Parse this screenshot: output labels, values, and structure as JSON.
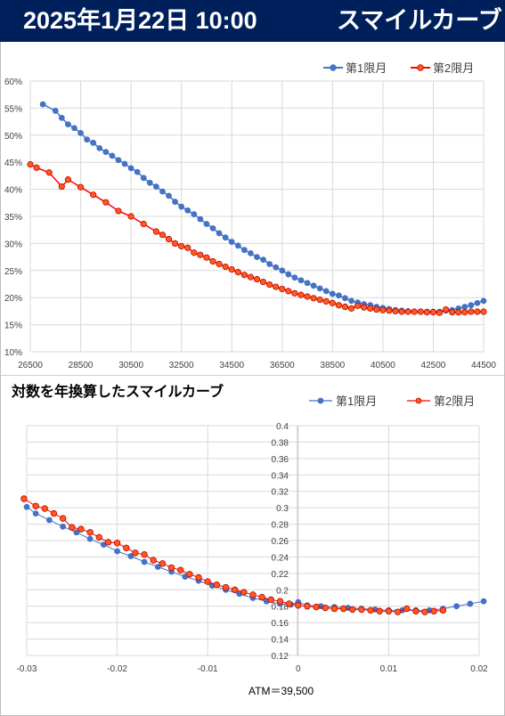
{
  "header": {
    "date": "2025年1月22日 10:00",
    "title": "スマイルカーブ"
  },
  "colors": {
    "header_bg": "#00205b",
    "series1": "#4472c4",
    "series2": "#ff0000",
    "series2_fill": "#ff5a1e"
  },
  "chart_data": [
    {
      "type": "line",
      "title": "",
      "legend_position": "top-right",
      "grid": true,
      "xlim": [
        26500,
        44500
      ],
      "ylim": [
        0.1,
        0.6
      ],
      "x_ticks": [
        "26500",
        "28500",
        "30500",
        "32500",
        "34500",
        "36500",
        "38500",
        "40500",
        "42500",
        "44500"
      ],
      "y_ticks": [
        "10%",
        "15%",
        "20%",
        "25%",
        "30%",
        "35%",
        "40%",
        "45%",
        "50%",
        "55%",
        "60%"
      ],
      "series": [
        {
          "name": "第1限月",
          "x": [
            27000,
            27500,
            27750,
            28000,
            28250,
            28500,
            28750,
            29000,
            29250,
            29500,
            29750,
            30000,
            30250,
            30500,
            30750,
            31000,
            31250,
            31500,
            31750,
            32000,
            32250,
            32500,
            32750,
            33000,
            33250,
            33500,
            33750,
            34000,
            34250,
            34500,
            34750,
            35000,
            35250,
            35500,
            35750,
            36000,
            36250,
            36500,
            36750,
            37000,
            37250,
            37500,
            37750,
            38000,
            38250,
            38500,
            38750,
            39000,
            39250,
            39500,
            39750,
            40000,
            40250,
            40500,
            40750,
            41000,
            41250,
            41500,
            41750,
            42000,
            42250,
            42500,
            42750,
            43000,
            43250,
            43500,
            43750,
            44000,
            44250,
            44500
          ],
          "y": [
            0.557,
            0.545,
            0.532,
            0.52,
            0.513,
            0.504,
            0.492,
            0.486,
            0.476,
            0.469,
            0.462,
            0.454,
            0.447,
            0.439,
            0.432,
            0.421,
            0.412,
            0.405,
            0.396,
            0.388,
            0.377,
            0.368,
            0.361,
            0.354,
            0.345,
            0.336,
            0.328,
            0.319,
            0.311,
            0.303,
            0.296,
            0.288,
            0.282,
            0.275,
            0.27,
            0.262,
            0.256,
            0.25,
            0.243,
            0.237,
            0.232,
            0.227,
            0.222,
            0.217,
            0.212,
            0.207,
            0.204,
            0.199,
            0.194,
            0.191,
            0.188,
            0.186,
            0.183,
            0.181,
            0.179,
            0.177,
            0.176,
            0.175,
            0.174,
            0.174,
            0.174,
            0.174,
            0.174,
            0.176,
            0.177,
            0.18,
            0.183,
            0.186,
            0.19,
            0.194
          ]
        },
        {
          "name": "第2限月",
          "x": [
            26500,
            26750,
            27250,
            27750,
            28000,
            28500,
            29000,
            29500,
            30000,
            30500,
            31000,
            31500,
            31750,
            32000,
            32250,
            32500,
            32750,
            33000,
            33250,
            33500,
            33750,
            34000,
            34250,
            34500,
            34750,
            35000,
            35250,
            35500,
            35750,
            36000,
            36250,
            36500,
            36750,
            37000,
            37250,
            37500,
            37750,
            38000,
            38250,
            38500,
            38750,
            39000,
            39250,
            39500,
            39750,
            40000,
            40250,
            40500,
            40750,
            41000,
            41250,
            41500,
            41750,
            42000,
            42250,
            42500,
            42750,
            43000,
            43250,
            43500,
            43750,
            44000,
            44250,
            44500
          ],
          "y": [
            0.446,
            0.44,
            0.431,
            0.405,
            0.418,
            0.404,
            0.39,
            0.376,
            0.36,
            0.35,
            0.336,
            0.322,
            0.316,
            0.308,
            0.3,
            0.295,
            0.292,
            0.283,
            0.279,
            0.274,
            0.267,
            0.262,
            0.257,
            0.252,
            0.247,
            0.242,
            0.238,
            0.234,
            0.229,
            0.224,
            0.22,
            0.216,
            0.212,
            0.208,
            0.205,
            0.202,
            0.199,
            0.196,
            0.193,
            0.19,
            0.186,
            0.183,
            0.18,
            0.185,
            0.182,
            0.18,
            0.178,
            0.177,
            0.176,
            0.175,
            0.174,
            0.174,
            0.174,
            0.174,
            0.173,
            0.173,
            0.172,
            0.178,
            0.173,
            0.173,
            0.173,
            0.174,
            0.174,
            0.174
          ]
        }
      ]
    },
    {
      "type": "line",
      "title": "対数を年換算したスマイルカーブ",
      "legend_position": "top-right",
      "grid": true,
      "xlim": [
        -0.03,
        0.02
      ],
      "ylim": [
        0.12,
        0.4
      ],
      "x_ticks": [
        "-0.03",
        "-0.02",
        "-0.01",
        "0",
        "0.01",
        "0.02"
      ],
      "y_ticks": [
        "0.12",
        "0.14",
        "0.16",
        "0.18",
        "0.2",
        "0.22",
        "0.24",
        "0.26",
        "0.28",
        "0.3",
        "0.32",
        "0.34",
        "0.36",
        "0.38",
        "0.4"
      ],
      "annotation": "ATM＝39,500",
      "series": [
        {
          "name": "第1限月",
          "x": [
            -0.03,
            -0.029,
            -0.0275,
            -0.026,
            -0.0245,
            -0.023,
            -0.0215,
            -0.02,
            -0.0185,
            -0.017,
            -0.0155,
            -0.014,
            -0.0125,
            -0.011,
            -0.0095,
            -0.008,
            -0.0065,
            -0.005,
            -0.0035,
            -0.002,
            -0.0008,
            0.0,
            0.001,
            0.0025,
            0.004,
            0.0055,
            0.007,
            0.0085,
            0.01,
            0.0115,
            0.013,
            0.0145,
            0.016,
            0.0175,
            0.019,
            0.0205
          ],
          "y": [
            0.301,
            0.293,
            0.285,
            0.277,
            0.27,
            0.262,
            0.255,
            0.247,
            0.241,
            0.234,
            0.228,
            0.222,
            0.216,
            0.211,
            0.205,
            0.2,
            0.195,
            0.19,
            0.186,
            0.183,
            0.182,
            0.185,
            0.181,
            0.18,
            0.179,
            0.178,
            0.177,
            0.176,
            0.175,
            0.175,
            0.175,
            0.175,
            0.177,
            0.18,
            0.183,
            0.186
          ]
        },
        {
          "name": "第2限月",
          "x": [
            -0.0303,
            -0.029,
            -0.028,
            -0.027,
            -0.026,
            -0.025,
            -0.024,
            -0.023,
            -0.022,
            -0.021,
            -0.02,
            -0.019,
            -0.018,
            -0.017,
            -0.016,
            -0.015,
            -0.014,
            -0.013,
            -0.012,
            -0.011,
            -0.01,
            -0.009,
            -0.008,
            -0.007,
            -0.006,
            -0.005,
            -0.004,
            -0.003,
            -0.002,
            -0.001,
            0.0,
            0.001,
            0.002,
            0.003,
            0.004,
            0.005,
            0.006,
            0.007,
            0.008,
            0.009,
            0.01,
            0.011,
            0.012,
            0.013,
            0.014,
            0.015,
            0.016
          ],
          "y": [
            0.311,
            0.302,
            0.299,
            0.293,
            0.287,
            0.276,
            0.274,
            0.27,
            0.264,
            0.258,
            0.257,
            0.251,
            0.245,
            0.243,
            0.236,
            0.232,
            0.227,
            0.224,
            0.219,
            0.215,
            0.21,
            0.206,
            0.203,
            0.2,
            0.197,
            0.194,
            0.191,
            0.188,
            0.186,
            0.183,
            0.181,
            0.18,
            0.179,
            0.178,
            0.177,
            0.177,
            0.176,
            0.176,
            0.175,
            0.174,
            0.174,
            0.173,
            0.177,
            0.174,
            0.173,
            0.174,
            0.175
          ]
        }
      ]
    }
  ]
}
